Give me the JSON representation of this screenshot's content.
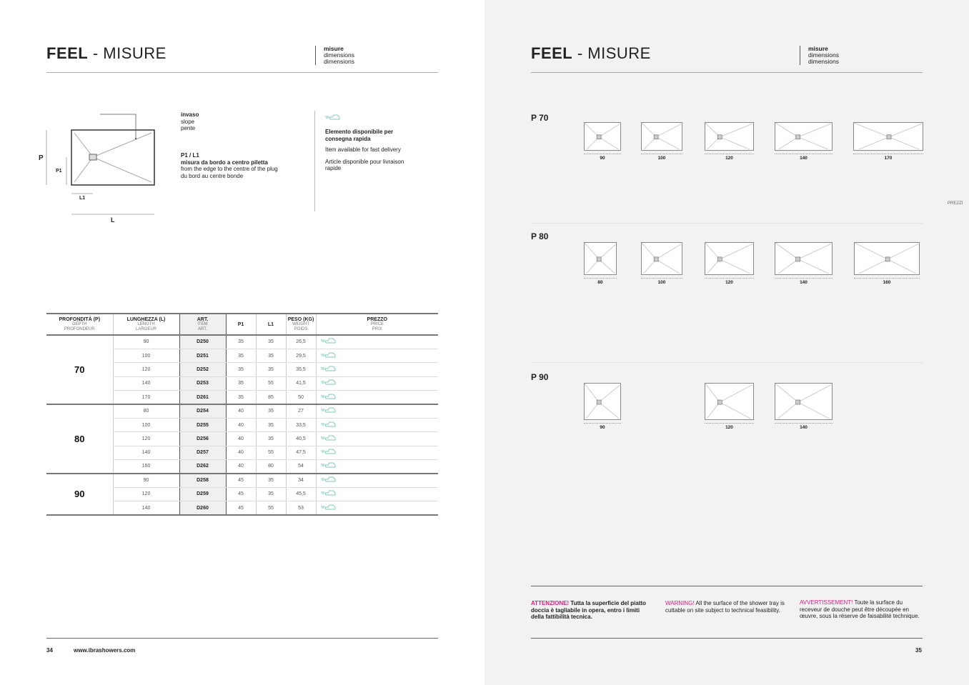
{
  "left": {
    "title_bold": "FEEL",
    "title_rest": " - MISURE",
    "subtitle": [
      "misure",
      "dimensions",
      "dimensions"
    ],
    "diagram": {
      "label_p": "P",
      "label_p1": "P1",
      "label_l1": "L1",
      "label_l": "L",
      "slope": [
        "invaso",
        "slope",
        "pente"
      ],
      "plug": [
        "P1 / L1",
        "misura da bordo a centro piletta",
        "from the edge to the centre of the plug",
        "du bord au centre bonde"
      ]
    },
    "legend": {
      "icon": "fast-delivery-car-icon",
      "it": "Elemento disponibile per consegna rapida",
      "en": "Item available for fast delivery",
      "fr": "Article disponible pour livraison rapide"
    },
    "table": {
      "headers": [
        {
          "main": "PROFONDITÀ (P)",
          "sub": [
            "DEPTH",
            "PROFONDEUR"
          ]
        },
        {
          "main": "LUNGHEZZA (L)",
          "sub": [
            "LENGTH",
            "LARGEUR"
          ]
        },
        {
          "main": "ART.",
          "sub": [
            "ITEM",
            "ART."
          ]
        },
        {
          "main": "P1",
          "sub": []
        },
        {
          "main": "L1",
          "sub": []
        },
        {
          "main": "PESO (KG)",
          "sub": [
            "WEIGHT",
            "POIDS"
          ]
        },
        {
          "main": "PREZZO",
          "sub": [
            "PRICE",
            "PRIX"
          ]
        }
      ],
      "groups": [
        {
          "depth": "70",
          "rows": [
            {
              "length": "90",
              "art": "D250",
              "p1": "35",
              "l1": "35",
              "weight": "26,5",
              "fast": true
            },
            {
              "length": "100",
              "art": "D251",
              "p1": "35",
              "l1": "35",
              "weight": "29,5",
              "fast": true
            },
            {
              "length": "120",
              "art": "D252",
              "p1": "35",
              "l1": "35",
              "weight": "35,5",
              "fast": true
            },
            {
              "length": "140",
              "art": "D253",
              "p1": "35",
              "l1": "55",
              "weight": "41,5",
              "fast": true
            },
            {
              "length": "170",
              "art": "D261",
              "p1": "35",
              "l1": "85",
              "weight": "50",
              "fast": true
            }
          ]
        },
        {
          "depth": "80",
          "rows": [
            {
              "length": "80",
              "art": "D254",
              "p1": "40",
              "l1": "35",
              "weight": "27",
              "fast": true
            },
            {
              "length": "100",
              "art": "D255",
              "p1": "40",
              "l1": "35",
              "weight": "33,5",
              "fast": true
            },
            {
              "length": "120",
              "art": "D256",
              "p1": "40",
              "l1": "35",
              "weight": "40,5",
              "fast": true
            },
            {
              "length": "140",
              "art": "D257",
              "p1": "40",
              "l1": "55",
              "weight": "47,5",
              "fast": true
            },
            {
              "length": "160",
              "art": "D262",
              "p1": "40",
              "l1": "80",
              "weight": "54",
              "fast": true
            }
          ]
        },
        {
          "depth": "90",
          "rows": [
            {
              "length": "90",
              "art": "D258",
              "p1": "45",
              "l1": "35",
              "weight": "34",
              "fast": true
            },
            {
              "length": "120",
              "art": "D259",
              "p1": "45",
              "l1": "35",
              "weight": "45,5",
              "fast": true
            },
            {
              "length": "140",
              "art": "D260",
              "p1": "45",
              "l1": "55",
              "weight": "53",
              "fast": true
            }
          ]
        }
      ]
    },
    "page_number": "34",
    "website": "www.ibrashowers.com"
  },
  "right": {
    "title_bold": "FEEL",
    "title_rest": " - MISURE",
    "subtitle": [
      "misure",
      "dimensions",
      "dimensions"
    ],
    "rows": [
      {
        "label": "P 70",
        "depth": 70,
        "lengths": [
          90,
          100,
          120,
          140,
          170
        ]
      },
      {
        "label": "P 80",
        "depth": 80,
        "lengths": [
          80,
          100,
          120,
          140,
          160
        ]
      },
      {
        "label": "P 90",
        "depth": 90,
        "lengths": [
          90,
          120,
          140
        ]
      }
    ],
    "side_tab": "PREZZI",
    "warnings": [
      {
        "head": "ATTENZIONE!",
        "text": " Tutta la superficie del piatto doccia è tagliabile in opera, entro i limiti della fattibilità tecnica."
      },
      {
        "head": "WARNING!",
        "text": " All the surface of the shower tray is cuttable on site subject to technical feasibility."
      },
      {
        "head": "AVVERTISSEMENT!",
        "text": " Toute la surface du receveur de douche peut être découpée en œuvre, sous la réserve de faisabilité technique."
      }
    ],
    "page_number": "35"
  },
  "colors": {
    "accent_pink": "#d6207f",
    "fast_delivery_teal": "#7fc9b8",
    "right_page_bg": "#f2f2f2"
  }
}
